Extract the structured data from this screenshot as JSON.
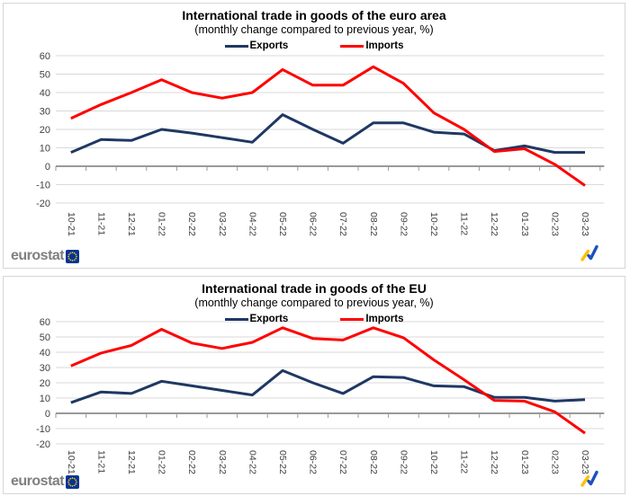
{
  "branding": {
    "logo_text": "eurostat"
  },
  "icons": {
    "eu_flag": "eu-flag-icon",
    "trend_arrow": "trend-arrow-icon"
  },
  "colors": {
    "exports": "#1f3864",
    "imports": "#fe0000",
    "gridline": "#d9d9d9",
    "axis": "#999999",
    "axis_label": "#404040",
    "eu_flag_blue": "#003399",
    "eu_flag_stars": "#ffcc00",
    "trend_yellow": "#ffc000",
    "trend_blue": "#1d51c0"
  },
  "chart_data": [
    {
      "type": "line",
      "title": "International trade in goods of the euro area",
      "subtitle": "(monthly change compared to previous year, %)",
      "legend_position": "top-center",
      "grid": true,
      "ylim": [
        -20,
        60
      ],
      "yticks": [
        60,
        50,
        40,
        30,
        20,
        10,
        0,
        -10,
        -20
      ],
      "categories": [
        "10-21",
        "11-21",
        "12-21",
        "01-22",
        "02-22",
        "03-22",
        "04-22",
        "05-22",
        "06-22",
        "07-22",
        "08-22",
        "09-22",
        "10-22",
        "11-22",
        "12-22",
        "01-23",
        "02-23",
        "03-23"
      ],
      "series": [
        {
          "name": "Exports",
          "color": "#1f3864",
          "values": [
            7.5,
            14.5,
            14,
            20,
            18,
            15.5,
            13,
            28,
            20,
            12.5,
            23.5,
            23.5,
            18.5,
            17.5,
            8.5,
            11,
            7.5,
            7.5
          ]
        },
        {
          "name": "Imports",
          "color": "#fe0000",
          "values": [
            26,
            33.5,
            40,
            47,
            40,
            37,
            40,
            52.5,
            44,
            44,
            54,
            45,
            29,
            20,
            8,
            9.5,
            1,
            -10.5
          ]
        }
      ]
    },
    {
      "type": "line",
      "title": "International trade in goods of the EU",
      "subtitle": "(monthly change compared to previous year, %)",
      "legend_position": "top-center",
      "grid": true,
      "ylim": [
        -20,
        60
      ],
      "yticks": [
        60,
        50,
        40,
        30,
        20,
        10,
        0,
        -10,
        -20
      ],
      "categories": [
        "10-21",
        "11-21",
        "12-21",
        "01-22",
        "02-22",
        "03-22",
        "04-22",
        "05-22",
        "06-22",
        "07-22",
        "08-22",
        "09-22",
        "10-22",
        "11-22",
        "12-22",
        "01-23",
        "02-23",
        "03-23"
      ],
      "series": [
        {
          "name": "Exports",
          "color": "#1f3864",
          "values": [
            7,
            14,
            13,
            21,
            18,
            15,
            12,
            28,
            20,
            13,
            24,
            23.5,
            18,
            17.5,
            10.5,
            10.5,
            8,
            9
          ]
        },
        {
          "name": "Imports",
          "color": "#fe0000",
          "values": [
            31,
            39.5,
            44.5,
            55,
            46,
            42.5,
            46.5,
            56,
            49,
            48,
            56,
            49.5,
            35,
            22,
            8.5,
            8,
            1,
            -13
          ]
        }
      ]
    }
  ]
}
